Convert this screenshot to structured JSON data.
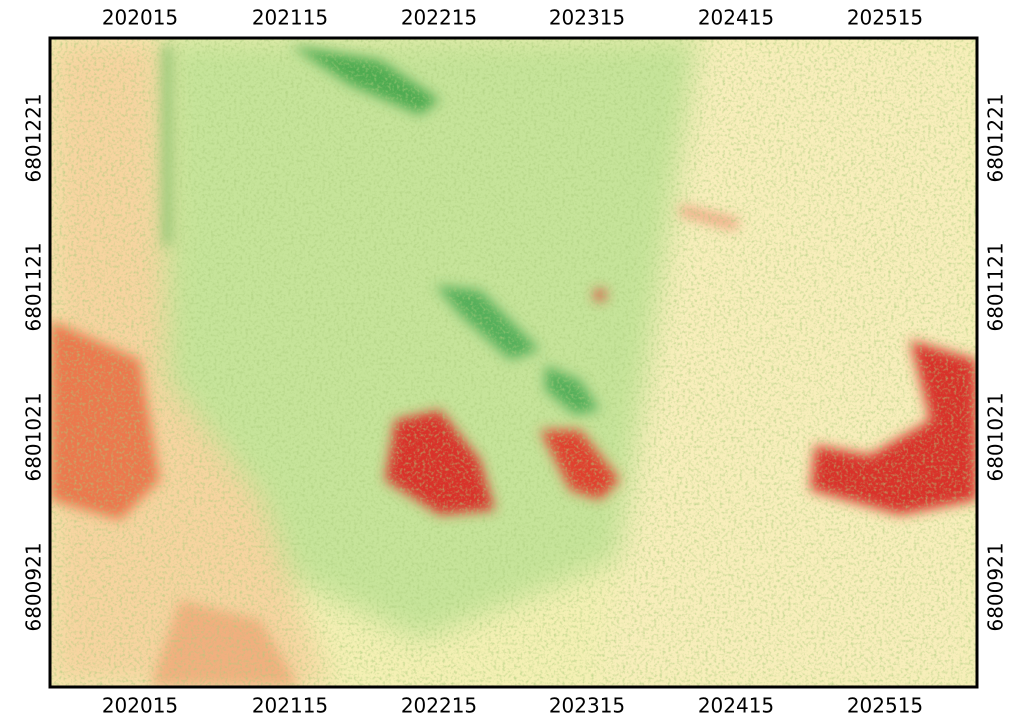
{
  "map": {
    "x_labels": [
      "202015",
      "202115",
      "202215",
      "202315",
      "202415",
      "202515"
    ],
    "y_labels": [
      "6801221",
      "6801121",
      "6801021",
      "6800921"
    ]
  }
}
